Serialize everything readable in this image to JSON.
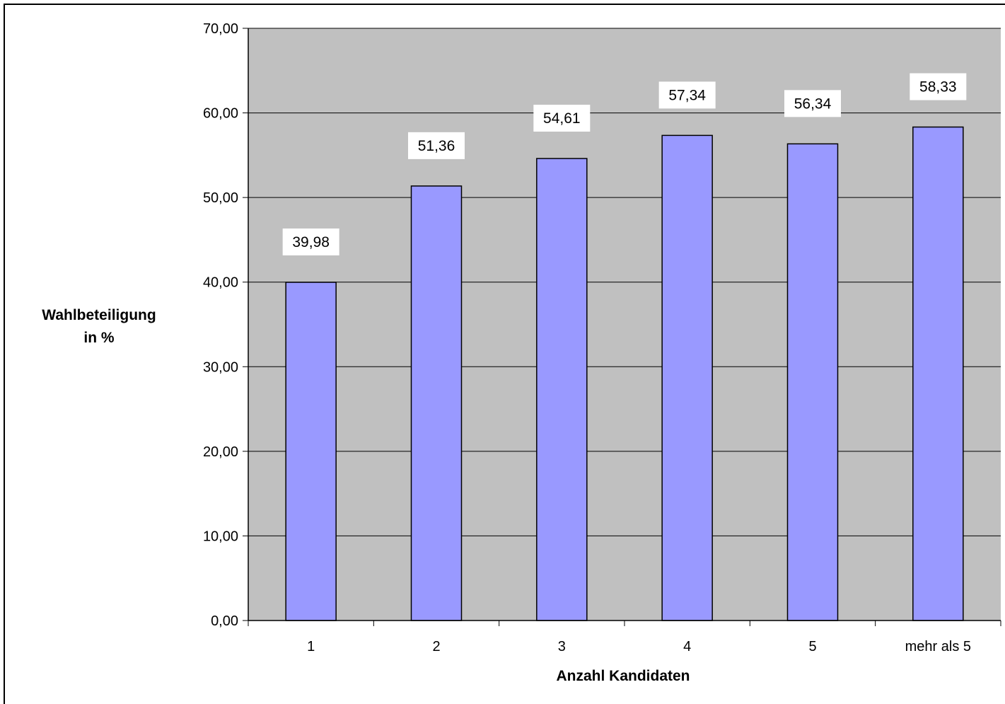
{
  "chart_data": {
    "type": "bar",
    "title": "",
    "categories": [
      "1",
      "2",
      "3",
      "4",
      "5",
      "mehr als 5"
    ],
    "values": [
      39.98,
      51.36,
      54.61,
      57.34,
      56.34,
      58.33
    ],
    "data_labels": [
      "39,98",
      "51,36",
      "54,61",
      "57,34",
      "56,34",
      "58,33"
    ],
    "xlabel": "Anzahl Kandidaten",
    "ylabel_lines": [
      "Wahlbeteiligung",
      "in %"
    ],
    "ylim": [
      0,
      70
    ],
    "yticks": [
      0,
      10,
      20,
      30,
      40,
      50,
      60,
      70
    ],
    "ytick_labels": [
      "0,00",
      "10,00",
      "20,00",
      "30,00",
      "40,00",
      "50,00",
      "60,00",
      "70,00"
    ],
    "grid": true,
    "legend": "none",
    "colors": {
      "plot_background": "#c0c0c0",
      "bar_fill": "#9999ff",
      "bar_stroke": "#000000",
      "gridline": "#000000",
      "label_background": "#ffffff"
    }
  }
}
